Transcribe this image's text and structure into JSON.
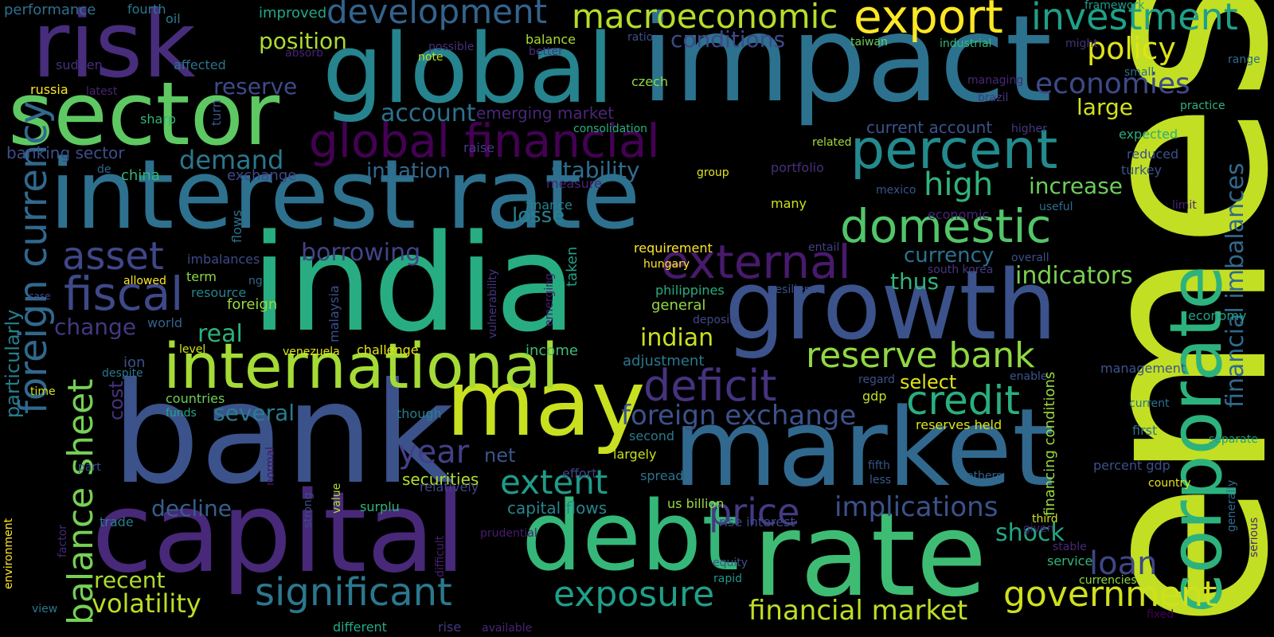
{
  "words": [
    {
      "text": "emes",
      "color": "#c2df23"
    },
    {
      "text": "interest rate",
      "color": "#2d718e"
    },
    {
      "text": "india",
      "color": "#27ad81"
    },
    {
      "text": "bank",
      "color": "#3b528b"
    },
    {
      "text": "impact",
      "color": "#2c728e"
    },
    {
      "text": "global",
      "color": "#25848e"
    },
    {
      "text": "market",
      "color": "#31688e"
    },
    {
      "text": "rate",
      "color": "#3fbc73"
    },
    {
      "text": "capital",
      "color": "#482878"
    },
    {
      "text": "risk",
      "color": "#472d7b"
    },
    {
      "text": "sector",
      "color": "#5ec962"
    },
    {
      "text": "growth",
      "color": "#3b528b"
    },
    {
      "text": "debt",
      "color": "#35b779"
    },
    {
      "text": "may",
      "color": "#c8e020"
    },
    {
      "text": "corporate",
      "color": "#2db27d"
    },
    {
      "text": "international",
      "color": "#a5db36"
    },
    {
      "text": "export",
      "color": "#fde725"
    },
    {
      "text": "global financial",
      "color": "#440154"
    },
    {
      "text": "percent",
      "color": "#238a8d"
    },
    {
      "text": "domestic",
      "color": "#52c569"
    },
    {
      "text": "foreign currency",
      "color": "#31688e"
    },
    {
      "text": "external",
      "color": "#481a6c"
    },
    {
      "text": "fiscal",
      "color": "#3e4989"
    },
    {
      "text": "deficit",
      "color": "#46337e"
    },
    {
      "text": "significant",
      "color": "#2a788e"
    },
    {
      "text": "government",
      "color": "#d0e11c"
    },
    {
      "text": "reserve bank",
      "color": "#90d743"
    },
    {
      "text": "credit",
      "color": "#29af7f"
    },
    {
      "text": "balance sheet",
      "color": "#75d054"
    },
    {
      "text": "development",
      "color": "#33638d"
    },
    {
      "text": "macroeconomic",
      "color": "#b5de2b"
    },
    {
      "text": "investment",
      "color": "#1fa088"
    },
    {
      "text": "exposure",
      "color": "#1f9e89"
    },
    {
      "text": "asset",
      "color": "#404688"
    },
    {
      "text": "price",
      "color": "#443a83"
    },
    {
      "text": "extent",
      "color": "#1e9c89"
    },
    {
      "text": "foreign exchange",
      "color": "#3b528b"
    },
    {
      "text": "financial market",
      "color": "#bddf26"
    },
    {
      "text": "implications",
      "color": "#3b528b"
    },
    {
      "text": "policy",
      "color": "#dfe318"
    },
    {
      "text": "economies",
      "color": "#3e4989"
    },
    {
      "text": "high",
      "color": "#2fb47c"
    },
    {
      "text": "increase",
      "color": "#6ccd5a"
    },
    {
      "text": "year",
      "color": "#424086"
    },
    {
      "text": "loan",
      "color": "#3f4788"
    },
    {
      "text": "volatility",
      "color": "#bade28"
    },
    {
      "text": "stability",
      "color": "#2e6e8e"
    },
    {
      "text": "inflation",
      "color": "#31688e"
    },
    {
      "text": "borrowing",
      "color": "#414487"
    },
    {
      "text": "financial imbalances",
      "color": "#30698e"
    },
    {
      "text": "demand",
      "color": "#2a788e"
    },
    {
      "text": "account",
      "color": "#2c728e"
    },
    {
      "text": "position",
      "color": "#addc30"
    },
    {
      "text": "reserve",
      "color": "#3e4a89"
    },
    {
      "text": "conditions",
      "color": "#3e4989"
    },
    {
      "text": "large",
      "color": "#d2e21b"
    },
    {
      "text": "indicators",
      "color": "#7ad151"
    },
    {
      "text": "currency",
      "color": "#2c728e"
    },
    {
      "text": "thus",
      "color": "#31b57b"
    },
    {
      "text": "shock",
      "color": "#22a785"
    },
    {
      "text": "indian",
      "color": "#cae11f"
    },
    {
      "text": "real",
      "color": "#2db27d"
    },
    {
      "text": "recent",
      "color": "#addc30"
    },
    {
      "text": "decline",
      "color": "#355f8d"
    },
    {
      "text": "several",
      "color": "#287d8e"
    },
    {
      "text": "change",
      "color": "#453882"
    },
    {
      "text": "particularly",
      "color": "#277f8e"
    },
    {
      "text": "cost",
      "color": "#46327e"
    },
    {
      "text": "select",
      "color": "#dde318"
    },
    {
      "text": "losse",
      "color": "#26828e"
    },
    {
      "text": "net",
      "color": "#3a548c"
    },
    {
      "text": "securities",
      "color": "#b0dd2f"
    },
    {
      "text": "capital flows",
      "color": "#24868e"
    },
    {
      "text": "current account",
      "color": "#3b528b"
    },
    {
      "text": "emerging market",
      "color": "#482677"
    },
    {
      "text": "banking sector",
      "color": "#3d4e8a"
    },
    {
      "text": "performance",
      "color": "#2e6f8e"
    },
    {
      "text": "improved",
      "color": "#22a884"
    },
    {
      "text": "fourth",
      "color": "#2a788e"
    },
    {
      "text": "oil",
      "color": "#287c8e"
    },
    {
      "text": "sudden",
      "color": "#472f7d"
    },
    {
      "text": "affected",
      "color": "#2c738e"
    },
    {
      "text": "russia",
      "color": "#fde725"
    },
    {
      "text": "latest",
      "color": "#482475"
    },
    {
      "text": "turn",
      "color": "#3a548c"
    },
    {
      "text": "sharp",
      "color": "#32b67a"
    },
    {
      "text": "de",
      "color": "#31688e"
    },
    {
      "text": "china",
      "color": "#35b779"
    },
    {
      "text": "exchange",
      "color": "#3e4989"
    },
    {
      "text": "raise",
      "color": "#443b84"
    },
    {
      "text": "measure",
      "color": "#482374"
    },
    {
      "text": "finance",
      "color": "#25838e"
    },
    {
      "text": "flows",
      "color": "#2c728e"
    },
    {
      "text": "imbalances",
      "color": "#3e4989"
    },
    {
      "text": "term",
      "color": "#8bd646"
    },
    {
      "text": "allowed",
      "color": "#fde725"
    },
    {
      "text": "resource",
      "color": "#25848e"
    },
    {
      "text": "ng",
      "color": "#306a8e"
    },
    {
      "text": "foreign",
      "color": "#9bd93c"
    },
    {
      "text": "world",
      "color": "#34608d"
    },
    {
      "text": "case",
      "color": "#3b518b"
    },
    {
      "text": "level",
      "color": "#d2e21b"
    },
    {
      "text": "malaysia",
      "color": "#3c4f8a"
    },
    {
      "text": "venezuela",
      "color": "#e2e418"
    },
    {
      "text": "challenge",
      "color": "#e5e419"
    },
    {
      "text": "income",
      "color": "#3fbc73"
    },
    {
      "text": "ion",
      "color": "#3b528b"
    },
    {
      "text": "despite",
      "color": "#2a788e"
    },
    {
      "text": "time",
      "color": "#d2e21b"
    },
    {
      "text": "countries",
      "color": "#6ece58"
    },
    {
      "text": "funds",
      "color": "#22a785"
    },
    {
      "text": "vulnerability",
      "color": "#453581"
    },
    {
      "text": "emerging",
      "color": "#481c6e"
    },
    {
      "text": "taken",
      "color": "#1fa187"
    },
    {
      "text": "note",
      "color": "#c2df23"
    },
    {
      "text": "possible",
      "color": "#472f7d"
    },
    {
      "text": "balance",
      "color": "#a8db34"
    },
    {
      "text": "better",
      "color": "#46337f"
    },
    {
      "text": "ratio",
      "color": "#3e4c8a"
    },
    {
      "text": "absorb",
      "color": "#482173"
    },
    {
      "text": "czech",
      "color": "#90d743"
    },
    {
      "text": "consolidation",
      "color": "#29af7f"
    },
    {
      "text": "taiwan",
      "color": "#6ccd5a"
    },
    {
      "text": "industrial",
      "color": "#35b779"
    },
    {
      "text": "might",
      "color": "#46327e"
    },
    {
      "text": "range",
      "color": "#2f6c8e"
    },
    {
      "text": "framework",
      "color": "#1e9b8a"
    },
    {
      "text": "small",
      "color": "#2f6b8e"
    },
    {
      "text": "managing",
      "color": "#482878"
    },
    {
      "text": "brazil",
      "color": "#453781"
    },
    {
      "text": "practice",
      "color": "#2fb47c"
    },
    {
      "text": "expected",
      "color": "#28ae80"
    },
    {
      "text": "reduced",
      "color": "#3c508b"
    },
    {
      "text": "turkey",
      "color": "#3b528b"
    },
    {
      "text": "higher",
      "color": "#443983"
    },
    {
      "text": "related",
      "color": "#a2da37"
    },
    {
      "text": "group",
      "color": "#e5e419"
    },
    {
      "text": "portfolio",
      "color": "#472f7d"
    },
    {
      "text": "mexico",
      "color": "#3a548c"
    },
    {
      "text": "useful",
      "color": "#2e6e8e"
    },
    {
      "text": "limit",
      "color": "#482374"
    },
    {
      "text": "economic",
      "color": "#482475"
    },
    {
      "text": "many",
      "color": "#cde11d"
    },
    {
      "text": "requirement",
      "color": "#fde725"
    },
    {
      "text": "entail",
      "color": "#433e85"
    },
    {
      "text": "hungary",
      "color": "#fde725"
    },
    {
      "text": "overall",
      "color": "#3c4f8a"
    },
    {
      "text": "south korea",
      "color": "#453882"
    },
    {
      "text": "philippines",
      "color": "#27ad81"
    },
    {
      "text": "resilience",
      "color": "#3c508b"
    },
    {
      "text": "general",
      "color": "#95d840"
    },
    {
      "text": "deposits",
      "color": "#3e4a89"
    },
    {
      "text": "economy",
      "color": "#20a386"
    },
    {
      "text": "adjustment",
      "color": "#2a788e"
    },
    {
      "text": "management",
      "color": "#3a548c"
    },
    {
      "text": "regard",
      "color": "#3b528b"
    },
    {
      "text": "gdp",
      "color": "#c0df25"
    },
    {
      "text": "enable",
      "color": "#39558c"
    },
    {
      "text": "reserves held",
      "color": "#dde318"
    },
    {
      "text": "current",
      "color": "#2b758e"
    },
    {
      "text": "first",
      "color": "#2d718e"
    },
    {
      "text": "separate",
      "color": "#1fa088"
    },
    {
      "text": "percent gdp",
      "color": "#3c4f8a"
    },
    {
      "text": "country",
      "color": "#e7e419"
    },
    {
      "text": "generally",
      "color": "#2e6e8e"
    },
    {
      "text": "serious",
      "color": "#482475"
    },
    {
      "text": "financing conditions",
      "color": "#9bd93c"
    },
    {
      "text": "though",
      "color": "#287d8e"
    },
    {
      "text": "second",
      "color": "#2a788e"
    },
    {
      "text": "largely",
      "color": "#c8e020"
    },
    {
      "text": "effort",
      "color": "#414487"
    },
    {
      "text": "spread",
      "color": "#2c738e"
    },
    {
      "text": "fifth",
      "color": "#39558c"
    },
    {
      "text": "less",
      "color": "#375b8d"
    },
    {
      "text": "others",
      "color": "#33638d"
    },
    {
      "text": "us billion",
      "color": "#9bd93c"
    },
    {
      "text": "third",
      "color": "#cde11d"
    },
    {
      "text": "relatively",
      "color": "#404588"
    },
    {
      "text": "surplu",
      "color": "#2fb47c"
    },
    {
      "text": "rise interest",
      "color": "#3e4989"
    },
    {
      "text": "given",
      "color": "#482475"
    },
    {
      "text": "service",
      "color": "#31b57b"
    },
    {
      "text": "currencies",
      "color": "#90d743"
    },
    {
      "text": "stable",
      "color": "#482878"
    },
    {
      "text": "fixed",
      "color": "#440154"
    },
    {
      "text": "equity",
      "color": "#3b528b"
    },
    {
      "text": "rapid",
      "color": "#1f968b"
    },
    {
      "text": "prudential",
      "color": "#481c6e"
    },
    {
      "text": "available",
      "color": "#482576"
    },
    {
      "text": "rise",
      "color": "#453882"
    },
    {
      "text": "different",
      "color": "#24aa83"
    },
    {
      "text": "difficult",
      "color": "#481d6f"
    },
    {
      "text": "strong",
      "color": "#3e4a89"
    },
    {
      "text": "value",
      "color": "#addc30"
    },
    {
      "text": "normal",
      "color": "#471365"
    },
    {
      "text": "part",
      "color": "#3b528b"
    },
    {
      "text": "trade",
      "color": "#287c8e"
    },
    {
      "text": "factor",
      "color": "#482878"
    },
    {
      "text": "environment",
      "color": "#fde725"
    },
    {
      "text": "view",
      "color": "#2a788e"
    }
  ]
}
